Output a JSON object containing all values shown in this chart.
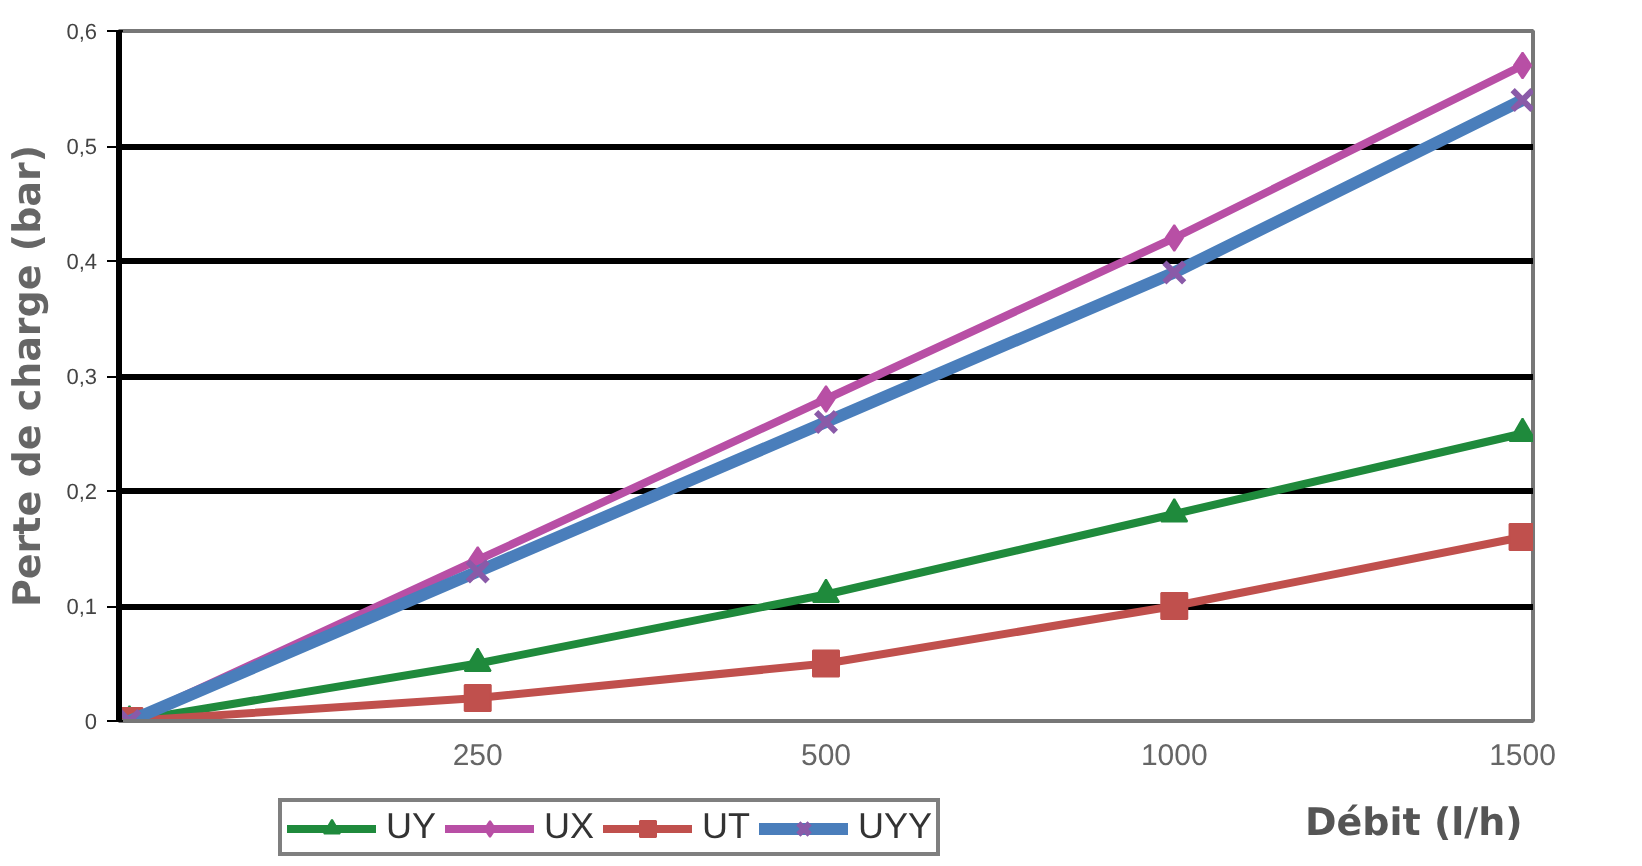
{
  "chart_data": {
    "type": "line",
    "xlabel": "Débit (l/h)",
    "ylabel": "Perte de charge (bar)",
    "categories": [
      null,
      "250",
      "500",
      "1000",
      "1500"
    ],
    "ylim": [
      0,
      0.6
    ],
    "yticks": [
      0,
      {
        "value": 0.1,
        "label": "0,1"
      },
      {
        "value": 0.2,
        "label": "0,2"
      },
      {
        "value": 0.3,
        "label": "0,3"
      },
      {
        "value": 0.4,
        "label": "0,4"
      },
      {
        "value": 0.5,
        "label": "0,5"
      },
      {
        "value": 0.6,
        "label": "0,6"
      }
    ],
    "grid": "y",
    "legend": "bottom left",
    "series": [
      {
        "name": "UY",
        "color": "#1f8a3c",
        "marker": "triangle",
        "values": [
          0,
          0.05,
          0.11,
          0.18,
          0.25
        ]
      },
      {
        "name": "UX",
        "color": "#b84fa5",
        "marker": "diamond",
        "values": [
          0,
          0.14,
          0.28,
          0.42,
          0.57
        ]
      },
      {
        "name": "UT",
        "color": "#c0504d",
        "marker": "square",
        "values": [
          0,
          0.02,
          0.05,
          0.1,
          0.16
        ]
      },
      {
        "name": "UYY",
        "color": "#4a7ebb",
        "marker": "cross",
        "values": [
          0,
          0.13,
          0.26,
          0.39,
          0.54
        ]
      }
    ]
  }
}
